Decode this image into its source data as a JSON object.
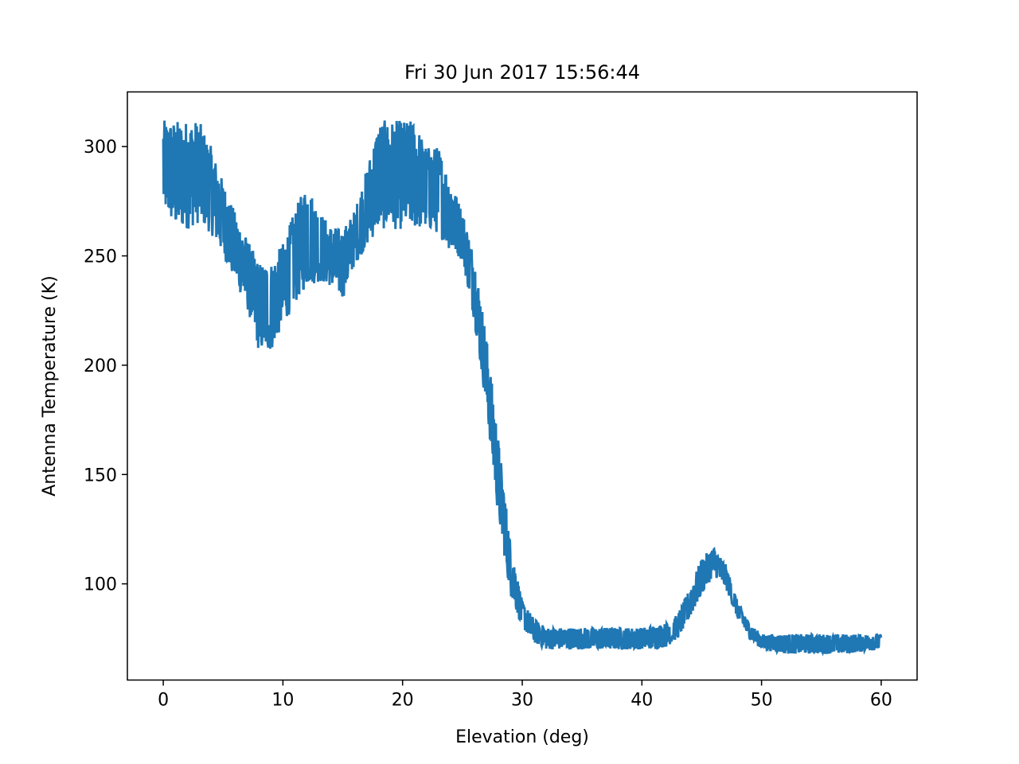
{
  "chart_data": {
    "type": "line",
    "title": "Fri 30 Jun 2017 15:56:44",
    "xlabel": "Elevation (deg)",
    "ylabel": "Antenna Temperature (K)",
    "xlim": [
      -3,
      63
    ],
    "ylim": [
      56,
      325
    ],
    "xticks": [
      0,
      10,
      20,
      30,
      40,
      50,
      60
    ],
    "yticks": [
      100,
      150,
      200,
      250,
      300
    ],
    "grid": false,
    "legend": "none",
    "series_color": "#1f77b4",
    "series": [
      {
        "band_low": [
          [
            0,
            271
          ],
          [
            1,
            262
          ],
          [
            2,
            262
          ],
          [
            3,
            265
          ],
          [
            4,
            260
          ],
          [
            5,
            250
          ],
          [
            6,
            238
          ],
          [
            7,
            226
          ],
          [
            8,
            206
          ],
          [
            9,
            206
          ],
          [
            10,
            218
          ],
          [
            11,
            228
          ],
          [
            12,
            236
          ],
          [
            13,
            238
          ],
          [
            14,
            236
          ],
          [
            15,
            230
          ],
          [
            16,
            246
          ],
          [
            17,
            254
          ],
          [
            18,
            262
          ],
          [
            19,
            262
          ],
          [
            20,
            262
          ],
          [
            21,
            262
          ],
          [
            22,
            262
          ],
          [
            23,
            260
          ],
          [
            24,
            252
          ],
          [
            25,
            248
          ],
          [
            26,
            220
          ],
          [
            27,
            180
          ],
          [
            28,
            130
          ],
          [
            29,
            95
          ],
          [
            30,
            80
          ],
          [
            31,
            73
          ],
          [
            32,
            70
          ],
          [
            35,
            70
          ],
          [
            40,
            70
          ],
          [
            42,
            71
          ],
          [
            43,
            75
          ],
          [
            44,
            84
          ],
          [
            45,
            95
          ],
          [
            46,
            104
          ],
          [
            47,
            98
          ],
          [
            48,
            84
          ],
          [
            49,
            75
          ],
          [
            50,
            70
          ],
          [
            52,
            68
          ],
          [
            55,
            68
          ],
          [
            57,
            68
          ],
          [
            60,
            70
          ]
        ],
        "band_high": [
          [
            0,
            312
          ],
          [
            1,
            312
          ],
          [
            2,
            312
          ],
          [
            3,
            312
          ],
          [
            4,
            300
          ],
          [
            5,
            284
          ],
          [
            6,
            270
          ],
          [
            7,
            258
          ],
          [
            8,
            247
          ],
          [
            9,
            247
          ],
          [
            10,
            256
          ],
          [
            11,
            271
          ],
          [
            12,
            284
          ],
          [
            13,
            271
          ],
          [
            14,
            264
          ],
          [
            15,
            262
          ],
          [
            16,
            271
          ],
          [
            17,
            290
          ],
          [
            18,
            312
          ],
          [
            19,
            312
          ],
          [
            20,
            312
          ],
          [
            21,
            312
          ],
          [
            22,
            300
          ],
          [
            23,
            300
          ],
          [
            24,
            285
          ],
          [
            25,
            271
          ],
          [
            26,
            250
          ],
          [
            27,
            214
          ],
          [
            28,
            167
          ],
          [
            29,
            120
          ],
          [
            30,
            92
          ],
          [
            31,
            84
          ],
          [
            32,
            80
          ],
          [
            35,
            80
          ],
          [
            40,
            80
          ],
          [
            42,
            82
          ],
          [
            43,
            86
          ],
          [
            44,
            98
          ],
          [
            45,
            112
          ],
          [
            46,
            117
          ],
          [
            47,
            109
          ],
          [
            48,
            92
          ],
          [
            49,
            82
          ],
          [
            50,
            77
          ],
          [
            52,
            77
          ],
          [
            55,
            77
          ],
          [
            57,
            77
          ],
          [
            60,
            77
          ]
        ]
      }
    ]
  }
}
